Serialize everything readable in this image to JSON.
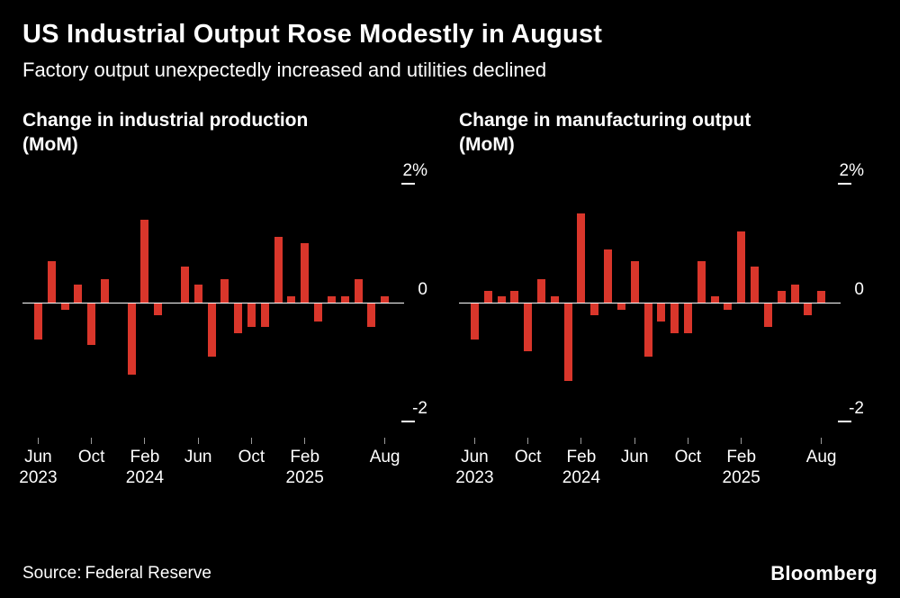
{
  "header": {
    "title": "US Industrial Output Rose Modestly in August",
    "subtitle": "Factory output unexpectedly increased and utilities declined"
  },
  "footer": {
    "source_label": "Source:",
    "source_value": "Federal Reserve",
    "brand": "Bloomberg"
  },
  "colors": {
    "background": "#000000",
    "bar": "#d9362b",
    "text": "#ffffff",
    "axis_line": "#ffffff",
    "tick": "#9b9b9b"
  },
  "chart_data": [
    {
      "type": "bar",
      "title": "Change in industrial production\n(MoM)",
      "xlabel": "",
      "ylabel": "%",
      "ylim": [
        -2.3,
        2.3
      ],
      "grid": "zero-line-only",
      "legend": "none",
      "x": [
        "Jun 2023",
        "Jul 2023",
        "Aug 2023",
        "Sep 2023",
        "Oct 2023",
        "Nov 2023",
        "Dec 2023",
        "Jan 2024",
        "Feb 2024",
        "Mar 2024",
        "Apr 2024",
        "May 2024",
        "Jun 2024",
        "Jul 2024",
        "Aug 2024",
        "Sep 2024",
        "Oct 2024",
        "Nov 2024",
        "Dec 2024",
        "Jan 2025",
        "Feb 2025",
        "Mar 2025",
        "Apr 2025",
        "May 2025",
        "Jun 2025",
        "Jul 2025",
        "Aug 2025"
      ],
      "values": [
        -0.6,
        0.7,
        -0.1,
        0.3,
        -0.7,
        0.4,
        0.0,
        -1.2,
        1.4,
        -0.2,
        0.0,
        0.6,
        0.3,
        -0.9,
        0.4,
        -0.5,
        -0.4,
        -0.4,
        1.1,
        0.1,
        1.0,
        -0.3,
        0.1,
        0.1,
        0.4,
        -0.4,
        0.1
      ],
      "y_ticks": [
        {
          "value": 2,
          "label": "2%"
        },
        {
          "value": 0,
          "label": "0"
        },
        {
          "value": -2,
          "label": "-2"
        }
      ],
      "x_ticks": [
        {
          "index": 0,
          "label": "Jun",
          "sub": "2023"
        },
        {
          "index": 4,
          "label": "Oct"
        },
        {
          "index": 8,
          "label": "Feb",
          "sub": "2024"
        },
        {
          "index": 12,
          "label": "Jun"
        },
        {
          "index": 16,
          "label": "Oct"
        },
        {
          "index": 20,
          "label": "Feb",
          "sub": "2025"
        },
        {
          "index": 26,
          "label": "Aug"
        }
      ]
    },
    {
      "type": "bar",
      "title": "Change in manufacturing output\n(MoM)",
      "xlabel": "",
      "ylabel": "%",
      "ylim": [
        -2.3,
        2.3
      ],
      "grid": "zero-line-only",
      "legend": "none",
      "x": [
        "Jun 2023",
        "Jul 2023",
        "Aug 2023",
        "Sep 2023",
        "Oct 2023",
        "Nov 2023",
        "Dec 2023",
        "Jan 2024",
        "Feb 2024",
        "Mar 2024",
        "Apr 2024",
        "May 2024",
        "Jun 2024",
        "Jul 2024",
        "Aug 2024",
        "Sep 2024",
        "Oct 2024",
        "Nov 2024",
        "Dec 2024",
        "Jan 2025",
        "Feb 2025",
        "Mar 2025",
        "Apr 2025",
        "May 2025",
        "Jun 2025",
        "Jul 2025",
        "Aug 2025"
      ],
      "values": [
        -0.6,
        0.2,
        0.1,
        0.2,
        -0.8,
        0.4,
        0.1,
        -1.3,
        1.5,
        -0.2,
        0.9,
        -0.1,
        0.7,
        -0.9,
        -0.3,
        -0.5,
        -0.5,
        0.7,
        0.1,
        -0.1,
        1.2,
        0.6,
        -0.4,
        0.2,
        0.3,
        -0.2,
        0.2
      ],
      "y_ticks": [
        {
          "value": 2,
          "label": "2%"
        },
        {
          "value": 0,
          "label": "0"
        },
        {
          "value": -2,
          "label": "-2"
        }
      ],
      "x_ticks": [
        {
          "index": 0,
          "label": "Jun",
          "sub": "2023"
        },
        {
          "index": 4,
          "label": "Oct"
        },
        {
          "index": 8,
          "label": "Feb",
          "sub": "2024"
        },
        {
          "index": 12,
          "label": "Jun"
        },
        {
          "index": 16,
          "label": "Oct"
        },
        {
          "index": 20,
          "label": "Feb",
          "sub": "2025"
        },
        {
          "index": 26,
          "label": "Aug"
        }
      ]
    }
  ]
}
